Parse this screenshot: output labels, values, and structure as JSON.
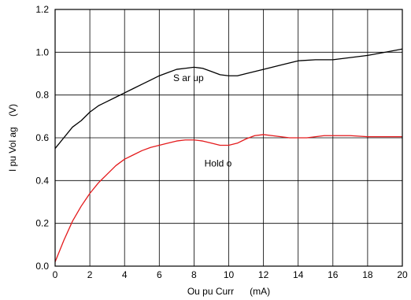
{
  "chart_data": {
    "type": "line",
    "title": "",
    "xlabel": "Ou pu Curr      (mA)",
    "ylabel": "I pu Vol ag    (V)",
    "xlim": [
      0,
      20
    ],
    "ylim": [
      0,
      1.2
    ],
    "xticks": [
      "0",
      "2",
      "4",
      "6",
      "8",
      "10",
      "12",
      "14",
      "16",
      "18",
      "20"
    ],
    "yticks": [
      "0.0",
      "0.2",
      "0.4",
      "0.6",
      "0.8",
      "1.0",
      "1.2"
    ],
    "grid": true,
    "series": [
      {
        "name": "S ar up",
        "color": "#000000",
        "x": [
          0,
          0.5,
          1,
          1.5,
          2,
          2.5,
          3,
          3.5,
          4,
          4.5,
          5,
          5.5,
          6,
          6.5,
          7,
          7.5,
          8,
          8.5,
          9,
          9.5,
          10,
          10.5,
          11,
          12,
          13,
          14,
          15,
          16,
          17,
          18,
          19,
          20
        ],
        "values": [
          0.55,
          0.6,
          0.65,
          0.68,
          0.72,
          0.75,
          0.77,
          0.79,
          0.81,
          0.83,
          0.85,
          0.87,
          0.89,
          0.905,
          0.92,
          0.925,
          0.93,
          0.925,
          0.91,
          0.895,
          0.89,
          0.89,
          0.9,
          0.92,
          0.94,
          0.96,
          0.965,
          0.965,
          0.975,
          0.985,
          1.0,
          1.015
        ]
      },
      {
        "name": "Hold o",
        "color": "#e41a1c",
        "x": [
          0,
          0.5,
          1,
          1.5,
          2,
          2.5,
          3,
          3.5,
          4,
          4.5,
          5,
          5.5,
          6,
          6.5,
          7,
          7.5,
          8,
          8.5,
          9,
          9.5,
          10,
          10.5,
          11,
          11.5,
          12,
          12.5,
          13,
          13.5,
          14,
          14.5,
          15,
          15.5,
          16,
          17,
          18,
          19,
          20
        ],
        "values": [
          0.02,
          0.12,
          0.21,
          0.28,
          0.34,
          0.39,
          0.43,
          0.47,
          0.5,
          0.52,
          0.54,
          0.555,
          0.565,
          0.575,
          0.585,
          0.59,
          0.59,
          0.585,
          0.575,
          0.565,
          0.565,
          0.575,
          0.595,
          0.61,
          0.615,
          0.61,
          0.605,
          0.6,
          0.6,
          0.6,
          0.605,
          0.61,
          0.61,
          0.61,
          0.605,
          0.605,
          0.605
        ]
      }
    ]
  }
}
